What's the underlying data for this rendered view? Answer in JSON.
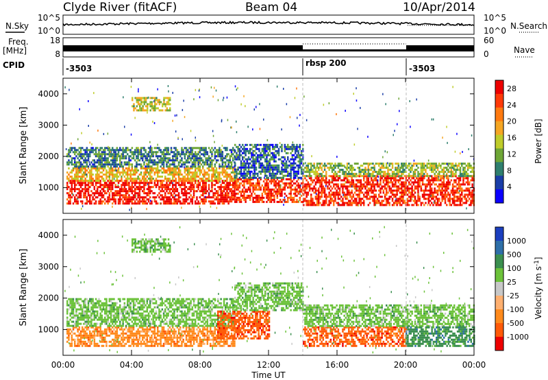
{
  "header": {
    "station": "Clyde River (fitACF)",
    "beam": "Beam 04",
    "date": "10/Apr/2014"
  },
  "noise_panel": {
    "left_label": "N.Sky",
    "right_label": "N.Search",
    "left_ticks": [
      "10^5",
      "10^0"
    ],
    "right_ticks": [
      "10^5",
      "10^0"
    ]
  },
  "freq_panel": {
    "left_label_1": "Freq.",
    "left_label_2": "[MHz]",
    "right_label": "Nave",
    "left_ticks": [
      "18",
      "8"
    ],
    "right_ticks": [
      "60",
      "0"
    ]
  },
  "cpid": {
    "label": "CPID",
    "segments": [
      {
        "start_hour": 0.0,
        "text": "-3503"
      },
      {
        "start_hour": 14.0,
        "text": "rbsp  200"
      },
      {
        "start_hour": 20.0,
        "text": "-3503"
      }
    ]
  },
  "chart_data": [
    {
      "type": "heatmap",
      "name": "power",
      "ylabel": "Slant Range [km]",
      "ylim": [
        180,
        4500
      ],
      "yticks": [
        "1000",
        "2000",
        "3000",
        "4000"
      ],
      "xlim_hours": [
        0,
        24
      ],
      "colorbar": {
        "label": "Power [dB]",
        "tick_labels": [
          "28",
          "24",
          "20",
          "16",
          "12",
          "8",
          "4"
        ],
        "tick_values": [
          28,
          24,
          20,
          16,
          12,
          8,
          4
        ],
        "range": [
          0,
          30
        ],
        "colors": [
          "#0b00ff",
          "#1a3ea8",
          "#2f7f6e",
          "#6ea636",
          "#bfcc2a",
          "#f5a623",
          "#ff7a10",
          "#ff3a08",
          "#ee0000"
        ]
      },
      "regions": [
        {
          "x": [
            0.2,
            10.0
          ],
          "y": [
            500,
            1250
          ],
          "level": 0.92
        },
        {
          "x": [
            0.2,
            10.0
          ],
          "y": [
            1250,
            1650
          ],
          "level": 0.6
        },
        {
          "x": [
            0.2,
            10.0
          ],
          "y": [
            1650,
            2300
          ],
          "level": 0.28
        },
        {
          "x": [
            4.0,
            6.2
          ],
          "y": [
            3500,
            3900
          ],
          "level": 0.5
        },
        {
          "x": [
            10.0,
            14.0
          ],
          "y": [
            550,
            1300
          ],
          "level": 0.85
        },
        {
          "x": [
            10.0,
            14.0
          ],
          "y": [
            1300,
            2400
          ],
          "level": 0.22
        },
        {
          "x": [
            14.0,
            24.0
          ],
          "y": [
            450,
            1400
          ],
          "level": 0.88
        },
        {
          "x": [
            14.0,
            24.0
          ],
          "y": [
            1400,
            1800
          ],
          "level": 0.45
        }
      ]
    },
    {
      "type": "heatmap",
      "name": "velocity",
      "ylabel": "Slant Range [km]",
      "xlabel": "Time UT",
      "ylim": [
        180,
        4500
      ],
      "yticks": [
        "1000",
        "2000",
        "3000",
        "4000"
      ],
      "xlim_hours": [
        0,
        24
      ],
      "xticks": [
        "00:00",
        "04:00",
        "08:00",
        "12:00",
        "16:00",
        "20:00",
        "00:00"
      ],
      "colorbar": {
        "label": "Velocity [m s^-1]",
        "tick_labels": [
          "1000",
          "500",
          "100",
          "25",
          "-25",
          "-100",
          "-500",
          "-1000"
        ],
        "colors": [
          "#1b3fbf",
          "#2e6fa8",
          "#3b8f4f",
          "#6cc23a",
          "#c8c8c8",
          "#ffb070",
          "#ff8a1c",
          "#ff5a08",
          "#ee0000"
        ]
      },
      "regions": [
        {
          "x": [
            0.2,
            10.0
          ],
          "y": [
            500,
            1100
          ],
          "level": "-100"
        },
        {
          "x": [
            0.2,
            10.0
          ],
          "y": [
            1100,
            2000
          ],
          "level": "25"
        },
        {
          "x": [
            4.0,
            6.2
          ],
          "y": [
            3500,
            3900
          ],
          "level": "25"
        },
        {
          "x": [
            9.0,
            12.0
          ],
          "y": [
            700,
            1600
          ],
          "level": "-500"
        },
        {
          "x": [
            10.0,
            14.0
          ],
          "y": [
            1600,
            2500
          ],
          "level": "25"
        },
        {
          "x": [
            14.0,
            20.0
          ],
          "y": [
            450,
            1100
          ],
          "level": "-500"
        },
        {
          "x": [
            14.0,
            24.0
          ],
          "y": [
            1100,
            1800
          ],
          "level": "25"
        },
        {
          "x": [
            20.0,
            24.0
          ],
          "y": [
            450,
            1100
          ],
          "level": "100"
        }
      ]
    }
  ]
}
